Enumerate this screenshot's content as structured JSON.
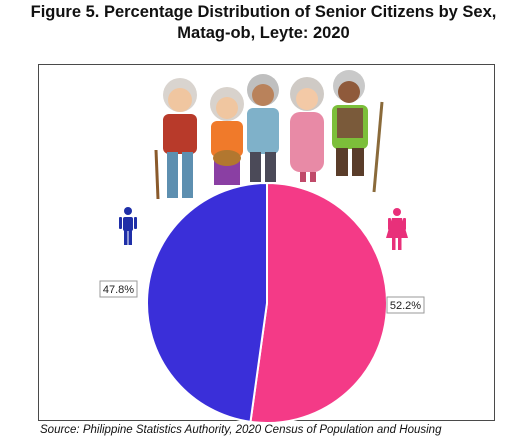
{
  "title_line1": "Figure 5. Percentage Distribution of Senior Citizens by Sex,",
  "title_line2": "Matag-ob, Leyte: 2020",
  "source": "Source: Philippine Statistics Authority, 2020 Census of Population and Housing",
  "icons": {
    "male": "male-person-icon",
    "female": "female-person-icon",
    "illustration": "elderly-people-illustration"
  },
  "colors": {
    "male": "#3a2fd9",
    "female": "#f43a87",
    "male_icon": "#1f2fa8",
    "female_icon": "#e8307a"
  },
  "chart_data": {
    "type": "pie",
    "title": "Figure 5. Percentage Distribution of Senior Citizens by Sex, Matag-ob, Leyte: 2020",
    "slices": [
      {
        "category": "Male",
        "value": 47.8,
        "label": "47.8%"
      },
      {
        "category": "Female",
        "value": 52.2,
        "label": "52.2%"
      }
    ]
  }
}
